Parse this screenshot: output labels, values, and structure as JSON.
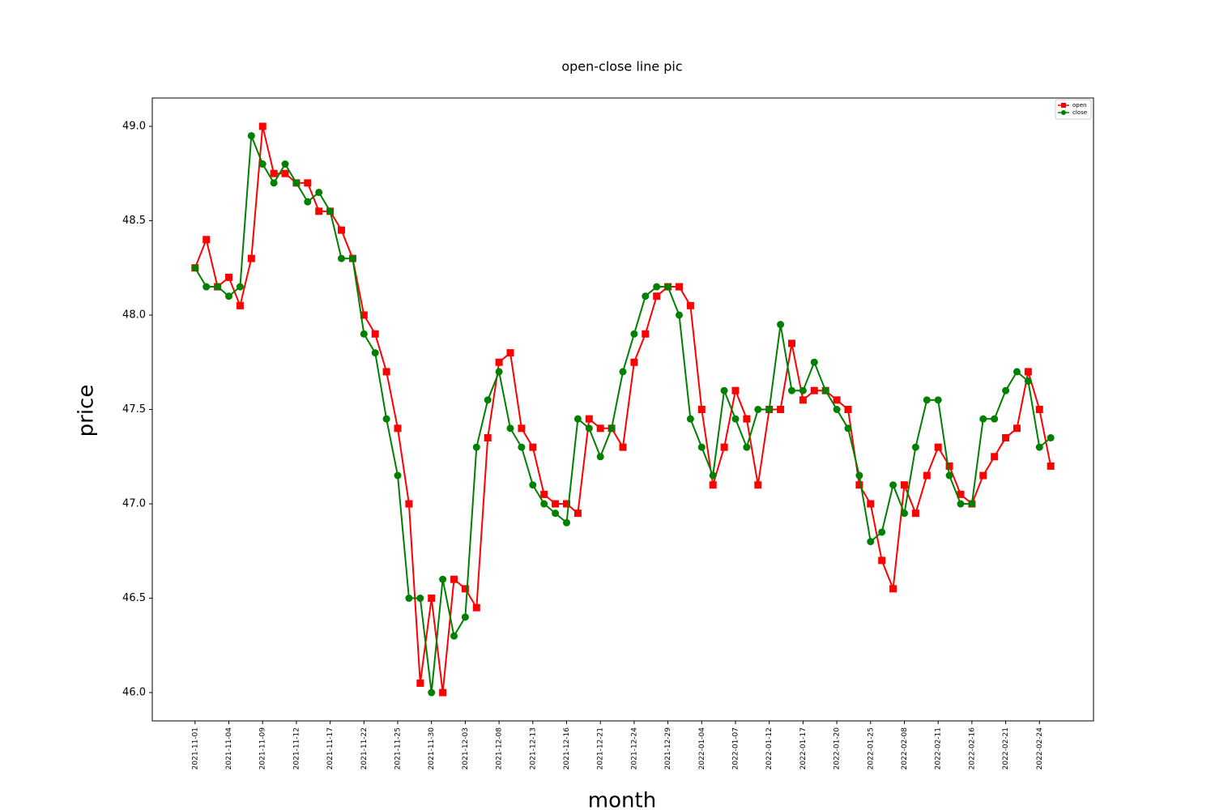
{
  "chart_data": {
    "type": "line",
    "title": "open-close line pic",
    "x_label": "month",
    "y_label": "price",
    "categories": [
      "2021-11-01",
      null,
      null,
      "2021-11-04",
      null,
      null,
      "2021-11-09",
      null,
      null,
      "2021-11-12",
      null,
      null,
      "2021-11-17",
      null,
      null,
      "2021-11-22",
      null,
      null,
      "2021-11-25",
      null,
      null,
      "2021-11-30",
      null,
      null,
      "2021-12-03",
      null,
      null,
      "2021-12-08",
      null,
      null,
      "2021-12-13",
      null,
      null,
      "2021-12-16",
      null,
      null,
      "2021-12-21",
      null,
      null,
      "2021-12-24",
      null,
      null,
      "2021-12-29",
      null,
      null,
      "2022-01-04",
      null,
      null,
      "2022-01-07",
      null,
      null,
      "2022-01-12",
      null,
      null,
      "2022-01-17",
      null,
      null,
      "2022-01-20",
      null,
      null,
      "2022-01-25",
      null,
      null,
      "2022-02-08",
      null,
      null,
      "2022-02-11",
      null,
      null,
      "2022-02-16",
      null,
      null,
      "2022-02-21",
      null,
      null,
      "2022-02-24",
      null
    ],
    "series": [
      {
        "name": "open",
        "color": "#ff0000",
        "marker": "square",
        "values": [
          48.25,
          48.4,
          48.15,
          48.2,
          48.05,
          48.3,
          49.0,
          48.75,
          48.75,
          48.7,
          48.7,
          48.55,
          48.55,
          48.45,
          48.3,
          48.0,
          47.9,
          47.7,
          47.4,
          47.0,
          46.05,
          46.5,
          46.0,
          46.6,
          46.55,
          46.45,
          47.35,
          47.75,
          47.8,
          47.4,
          47.3,
          47.05,
          47.0,
          47.0,
          46.95,
          47.45,
          47.4,
          47.4,
          47.3,
          47.75,
          47.9,
          48.1,
          48.15,
          48.15,
          48.05,
          47.5,
          47.1,
          47.3,
          47.6,
          47.45,
          47.1,
          47.5,
          47.5,
          47.85,
          47.55,
          47.6,
          47.6,
          47.55,
          47.5,
          47.1,
          47.0,
          46.7,
          46.55,
          47.1,
          46.95,
          47.15,
          47.3,
          47.2,
          47.05,
          47.0,
          47.15,
          47.25,
          47.35,
          47.4,
          47.7,
          47.5,
          47.2
        ]
      },
      {
        "name": "close",
        "color": "#008000",
        "marker": "circle",
        "values": [
          48.25,
          48.15,
          48.15,
          48.1,
          48.15,
          48.95,
          48.8,
          48.7,
          48.8,
          48.7,
          48.6,
          48.65,
          48.55,
          48.3,
          48.3,
          47.9,
          47.8,
          47.45,
          47.15,
          46.5,
          46.5,
          46.0,
          46.6,
          46.3,
          46.4,
          47.3,
          47.55,
          47.7,
          47.4,
          47.3,
          47.1,
          47.0,
          46.95,
          46.9,
          47.45,
          47.4,
          47.25,
          47.4,
          47.7,
          47.9,
          48.1,
          48.15,
          48.15,
          48.0,
          47.45,
          47.3,
          47.15,
          47.6,
          47.45,
          47.3,
          47.5,
          47.5,
          47.95,
          47.6,
          47.6,
          47.75,
          47.6,
          47.5,
          47.4,
          47.15,
          46.8,
          46.85,
          47.1,
          46.95,
          47.3,
          47.55,
          47.55,
          47.15,
          47.0,
          47.0,
          47.45,
          47.45,
          47.6,
          47.7,
          47.65,
          47.3,
          47.35
        ]
      }
    ],
    "ylim": [
      45.85,
      49.15
    ],
    "yticks": [
      {
        "value": 46,
        "label": "46.0"
      },
      46.5,
      {
        "value": 47,
        "label": "47.0"
      },
      47.5,
      {
        "value": 48,
        "label": "48.0"
      },
      48.5,
      {
        "value": 49,
        "label": "49.0"
      }
    ],
    "grid": false,
    "legend": "upper right"
  }
}
